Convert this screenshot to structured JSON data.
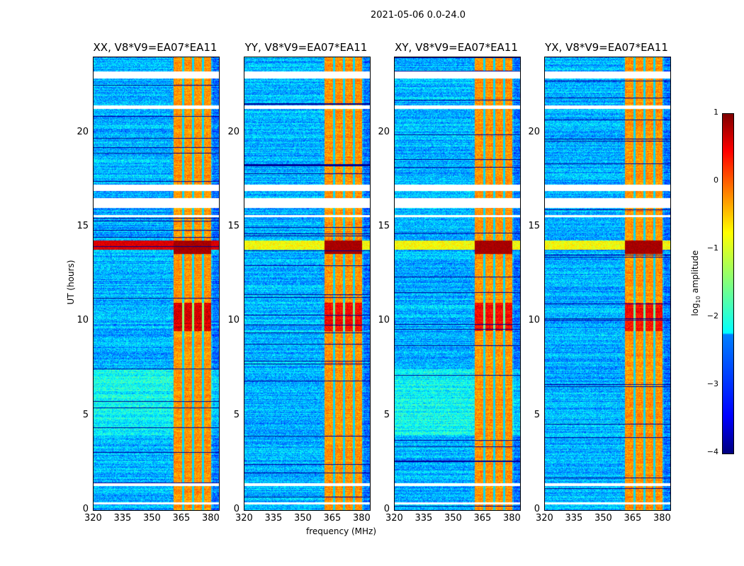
{
  "chart_data": {
    "type": "heatmap",
    "title": "2021-05-06 0.0-24.0",
    "xlabel": "frequency (MHz)",
    "ylabel": "UT (hours)",
    "xlim": [
      320,
      384
    ],
    "ylim": [
      0,
      24
    ],
    "xticks": [
      "320",
      "335",
      "350",
      "365",
      "380"
    ],
    "yticks": [
      "0",
      "5",
      "10",
      "15",
      "20"
    ],
    "panels": [
      {
        "title": "XX, V8*V9=EA07*EA11"
      },
      {
        "title": "YY, V8*V9=EA07*EA11"
      },
      {
        "title": "XY, V8*V9=EA07*EA11"
      },
      {
        "title": "YX, V8*V9=EA07*EA11"
      }
    ],
    "rfi_band_mhz": [
      360.5,
      380
    ],
    "flagged_hours": [
      [
        23.25,
        22.9
      ],
      [
        21.45,
        21.3
      ],
      [
        17.25,
        16.95
      ],
      [
        16.55,
        16.05
      ],
      [
        15.65,
        15.55
      ],
      [
        1.45,
        1.3
      ],
      [
        0.45,
        0.3
      ]
    ],
    "high_amplitude_hours": [
      [
        13.6,
        14.3
      ],
      [
        9.5,
        11
      ]
    ],
    "colorbar": {
      "label": "log10 amplitude",
      "clim": [
        -4,
        1
      ],
      "ticks": [
        "1",
        "0",
        "−1",
        "−2",
        "−3",
        "−4"
      ]
    }
  }
}
